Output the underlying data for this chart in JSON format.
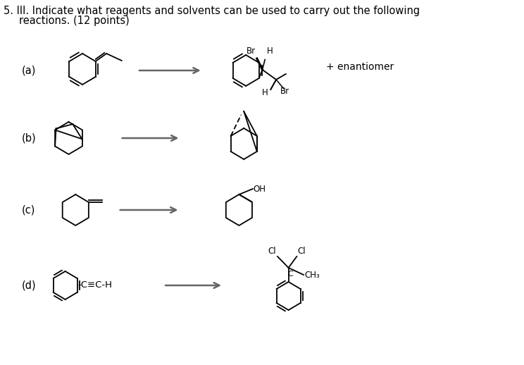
{
  "title_line1": "5. III. Indicate what reagents and solvents can be used to carry out the following",
  "title_line2": "reactions. (12 points)",
  "labels": [
    "(a)",
    "(b)",
    "(c)",
    "(d)"
  ],
  "enantiomer_text": "+ enantiomer",
  "background_color": "#ffffff",
  "text_color": "#000000",
  "line_color": "#000000",
  "arrow_color": "#666666",
  "font_size_title": 10.5,
  "font_size_label": 10.5,
  "font_size_chem": 8.5
}
